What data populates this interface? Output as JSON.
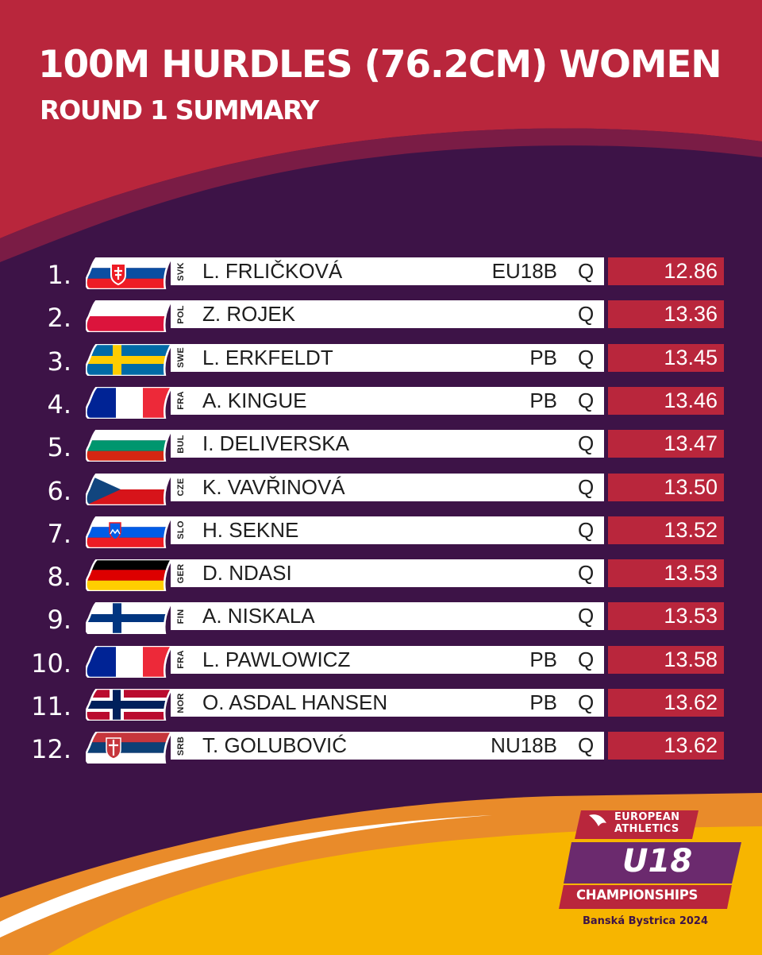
{
  "header": {
    "title": "100M HURDLES (76.2CM) WOMEN",
    "subtitle": "ROUND 1 SUMMARY"
  },
  "colors": {
    "background": "#3d1347",
    "header_red": "#b9263c",
    "time_cell": "#b9263c",
    "row_bar": "#ffffff",
    "accent_orange": "#f5a623",
    "accent_yellow": "#f7b500"
  },
  "results": [
    {
      "rank": "1.",
      "country": "SVK",
      "flag": "slovakia-flag",
      "name": "L. FRLIČKOVÁ",
      "note": "EU18B",
      "qualifier": "Q",
      "time": "12.86"
    },
    {
      "rank": "2.",
      "country": "POL",
      "flag": "poland-flag",
      "name": "Z. ROJEK",
      "note": "",
      "qualifier": "Q",
      "time": "13.36"
    },
    {
      "rank": "3.",
      "country": "SWE",
      "flag": "sweden-flag",
      "name": "L. ERKFELDT",
      "note": "PB",
      "qualifier": "Q",
      "time": "13.45"
    },
    {
      "rank": "4.",
      "country": "FRA",
      "flag": "france-flag",
      "name": "A. KINGUE",
      "note": "PB",
      "qualifier": "Q",
      "time": "13.46"
    },
    {
      "rank": "5.",
      "country": "BUL",
      "flag": "bulgaria-flag",
      "name": "I. DELIVERSKA",
      "note": "",
      "qualifier": "Q",
      "time": "13.47"
    },
    {
      "rank": "6.",
      "country": "CZE",
      "flag": "czechia-flag",
      "name": "K. VAVŘINOVÁ",
      "note": "",
      "qualifier": "Q",
      "time": "13.50"
    },
    {
      "rank": "7.",
      "country": "SLO",
      "flag": "slovenia-flag",
      "name": "H. SEKNE",
      "note": "",
      "qualifier": "Q",
      "time": "13.52"
    },
    {
      "rank": "8.",
      "country": "GER",
      "flag": "germany-flag",
      "name": "D. NDASI",
      "note": "",
      "qualifier": "Q",
      "time": "13.53"
    },
    {
      "rank": "9.",
      "country": "FIN",
      "flag": "finland-flag",
      "name": "A. NISKALA",
      "note": "",
      "qualifier": "Q",
      "time": "13.53"
    },
    {
      "rank": "10.",
      "country": "FRA",
      "flag": "france-flag",
      "name": "L. PAWLOWICZ",
      "note": "PB",
      "qualifier": "Q",
      "time": "13.58"
    },
    {
      "rank": "11.",
      "country": "NOR",
      "flag": "norway-flag",
      "name": "O. ASDAL HANSEN",
      "note": "PB",
      "qualifier": "Q",
      "time": "13.62"
    },
    {
      "rank": "12.",
      "country": "SRB",
      "flag": "serbia-flag",
      "name": "T. GOLUBOVIĆ",
      "note": "NU18B",
      "qualifier": "Q",
      "time": "13.62"
    }
  ],
  "logo": {
    "line1": "EUROPEAN",
    "line2": "ATHLETICS",
    "event": "U18",
    "type": "CHAMPIONSHIPS",
    "location": "Banská Bystrica 2024"
  }
}
